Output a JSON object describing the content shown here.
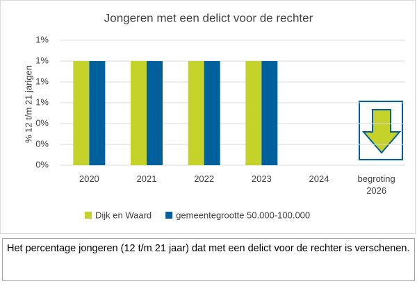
{
  "chart_data": {
    "type": "bar",
    "title": "Jongeren met een delict voor de rechter",
    "y_label": "% 12 t/m 21 jarigen",
    "categories": [
      "2020",
      "2021",
      "2022",
      "2023",
      "2024",
      "begroting 2026"
    ],
    "series": [
      {
        "name": "Dijk en Waard",
        "color": "#c5d22a",
        "values": [
          1.0,
          1.0,
          1.0,
          1.0,
          null,
          null
        ]
      },
      {
        "name": "gemeentegrootte 50.000-100.000",
        "color": "#00609c",
        "values": [
          1.0,
          1.0,
          1.0,
          1.0,
          null,
          null
        ]
      }
    ],
    "ylim": [
      0,
      1.2
    ],
    "yticks": [
      {
        "value": 0,
        "label": "0%"
      },
      {
        "value": 0.2,
        "label": "0%"
      },
      {
        "value": 0.4,
        "label": "0%"
      },
      {
        "value": 0.6,
        "label": "1%"
      },
      {
        "value": 0.8,
        "label": "1%"
      },
      {
        "value": 1.0,
        "label": "1%"
      },
      {
        "value": 1.2,
        "label": "1%"
      }
    ],
    "grid": true
  },
  "caption": "Het percentage jongeren (12 t/m 21 jaar) dat met een delict voor de rechter is verschenen."
}
